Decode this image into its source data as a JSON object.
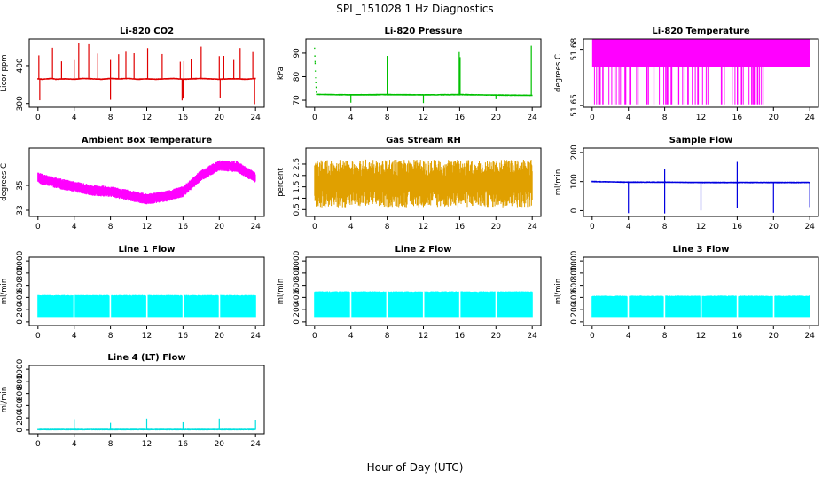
{
  "figure": {
    "title": "SPL_151028  1 Hz Diagnostics",
    "xlabel": "Hour of Day (UTC)"
  },
  "chart_data": [
    {
      "type": "line",
      "title": "Li-820 CO2",
      "ylabel": "Licor ppm",
      "xlim": [
        0,
        24
      ],
      "xticks": [
        0,
        4,
        8,
        12,
        16,
        20,
        24
      ],
      "ylim": [
        290,
        470
      ],
      "yticks": [
        300,
        400
      ],
      "color": "#e00000",
      "x": [
        0,
        0.5,
        1,
        1.5,
        2,
        3,
        4,
        5,
        6,
        7,
        8,
        9,
        10,
        11,
        12,
        13,
        14,
        15,
        16,
        17,
        18,
        19,
        20,
        21,
        22,
        23,
        24
      ],
      "values": [
        365,
        364,
        365,
        366,
        364,
        365,
        364,
        366,
        365,
        364,
        366,
        365,
        366,
        364,
        365,
        364,
        365,
        366,
        364,
        365,
        366,
        365,
        364,
        365,
        365,
        364,
        366
      ],
      "spikes_up": [
        0.1,
        1.6,
        2.6,
        4.0,
        4.5,
        5.6,
        6.6,
        8.0,
        8.9,
        9.7,
        10.6,
        12.1,
        13.7,
        15.7,
        16.1,
        16.9,
        18.0,
        20.0,
        20.5,
        21.6,
        22.3,
        23.7
      ],
      "spikes_down": [
        0.2,
        8.0,
        15.9,
        16.0,
        20.1,
        23.9
      ]
    },
    {
      "type": "line",
      "title": "Li-820 Pressure",
      "ylabel": "kPa",
      "xlim": [
        0,
        24
      ],
      "xticks": [
        0,
        4,
        8,
        12,
        16,
        20,
        24
      ],
      "ylim": [
        67,
        96
      ],
      "yticks": [
        70,
        80,
        90
      ],
      "color": "#00c000",
      "x": [
        0,
        0.1,
        0.2,
        4,
        8,
        12,
        16,
        20,
        24
      ],
      "values": [
        92,
        80,
        72.5,
        72.3,
        72.4,
        72.3,
        72.4,
        72.2,
        72.1
      ],
      "spikes_up": [
        0.05,
        8.0,
        15.95,
        16.05,
        23.9
      ],
      "spikes_down": [
        4.0,
        12.0,
        20.0
      ]
    },
    {
      "type": "line",
      "title": "Li-820 Temperature",
      "ylabel": "degrees C",
      "xlim": [
        0,
        24
      ],
      "xticks": [
        0,
        4,
        8,
        12,
        16,
        20,
        24
      ],
      "ylim": [
        51.649,
        51.6855
      ],
      "yticks": [
        51.65,
        51.68
      ],
      "color": "#ff00ff",
      "band_low": 51.6705,
      "band_high": 51.6855,
      "dropout_level": 51.6505
    },
    {
      "type": "line",
      "title": "Ambient Box Temperature",
      "ylabel": "degrees C",
      "xlim": [
        0,
        24
      ],
      "xticks": [
        0,
        4,
        8,
        12,
        16,
        20,
        24
      ],
      "ylim": [
        32.5,
        38
      ],
      "yticks": [
        33,
        35
      ],
      "color": "#ff00ff",
      "x": [
        0,
        2,
        4,
        6,
        8,
        10,
        12,
        14,
        16,
        18,
        20,
        22,
        24
      ],
      "values": [
        35.6,
        35.2,
        34.9,
        34.6,
        34.5,
        34.2,
        33.9,
        34.1,
        34.5,
        35.8,
        36.6,
        36.5,
        35.6
      ]
    },
    {
      "type": "line",
      "title": "Gas Stream RH",
      "ylabel": "percent",
      "xlim": [
        0,
        24
      ],
      "xticks": [
        0,
        4,
        8,
        12,
        16,
        20,
        24
      ],
      "ylim": [
        0.2,
        3.2
      ],
      "yticks": [
        0.5,
        1,
        1.5,
        2,
        2.5
      ],
      "color": "#e0a000",
      "band_low": 0.6,
      "band_high": 2.7
    },
    {
      "type": "line",
      "title": "Sample Flow",
      "ylabel": "ml/min",
      "xlim": [
        0,
        24
      ],
      "xticks": [
        0,
        4,
        8,
        12,
        16,
        20,
        24
      ],
      "ylim": [
        -20,
        215
      ],
      "yticks": [
        0,
        100,
        200
      ],
      "color": "#0000e0",
      "x": [
        0,
        4,
        8,
        12,
        16,
        20,
        24
      ],
      "values": [
        100,
        98,
        98,
        97,
        97,
        97,
        97
      ],
      "spikes_down": [
        4.0,
        8.0,
        12.0,
        16.0,
        20.0,
        24.0
      ],
      "spikes_up": [
        8.0,
        16.0
      ]
    },
    {
      "type": "line",
      "title": "Line 1 Flow",
      "ylabel": "ml/min",
      "xlim": [
        0,
        24
      ],
      "xticks": [
        0,
        4,
        8,
        12,
        16,
        20,
        24
      ],
      "ylim": [
        -60,
        1060
      ],
      "yticks": [
        0,
        200,
        400,
        600,
        800,
        1000
      ],
      "color": "#00ffff",
      "band_low": 80,
      "band_high": 440,
      "gaps": [
        4.0,
        8.0,
        12.0,
        16.0,
        20.0
      ]
    },
    {
      "type": "line",
      "title": "Line 2 Flow",
      "ylabel": "ml/min",
      "xlim": [
        0,
        24
      ],
      "xticks": [
        0,
        4,
        8,
        12,
        16,
        20,
        24
      ],
      "ylim": [
        -60,
        1060
      ],
      "yticks": [
        0,
        200,
        400,
        600,
        800,
        1000
      ],
      "color": "#00ffff",
      "band_low": 80,
      "band_high": 500,
      "gaps": [
        4.0,
        8.0,
        12.0,
        16.0,
        20.0
      ]
    },
    {
      "type": "line",
      "title": "Line 3 Flow",
      "ylabel": "ml/min",
      "xlim": [
        0,
        24
      ],
      "xticks": [
        0,
        4,
        8,
        12,
        16,
        20,
        24
      ],
      "ylim": [
        -60,
        1060
      ],
      "yticks": [
        0,
        200,
        400,
        600,
        800,
        1000
      ],
      "color": "#00ffff",
      "band_low": 80,
      "band_high": 430,
      "gaps": [
        4.0,
        8.0,
        12.0,
        16.0,
        20.0
      ]
    },
    {
      "type": "line",
      "title": "Line 4 (LT) Flow",
      "ylabel": "ml/min",
      "xlim": [
        0,
        24
      ],
      "xticks": [
        0,
        4,
        8,
        12,
        16,
        20,
        24
      ],
      "ylim": [
        -60,
        1060
      ],
      "yticks": [
        0,
        200,
        400,
        600,
        800,
        1000
      ],
      "color": "#00e0e0",
      "x": [
        0,
        24
      ],
      "values": [
        10,
        10
      ],
      "spikes_up": [
        4.0,
        8.0,
        12.0,
        16.0,
        20.0,
        24.0
      ],
      "spike_values": [
        180,
        120,
        190,
        130,
        190,
        160
      ]
    }
  ]
}
